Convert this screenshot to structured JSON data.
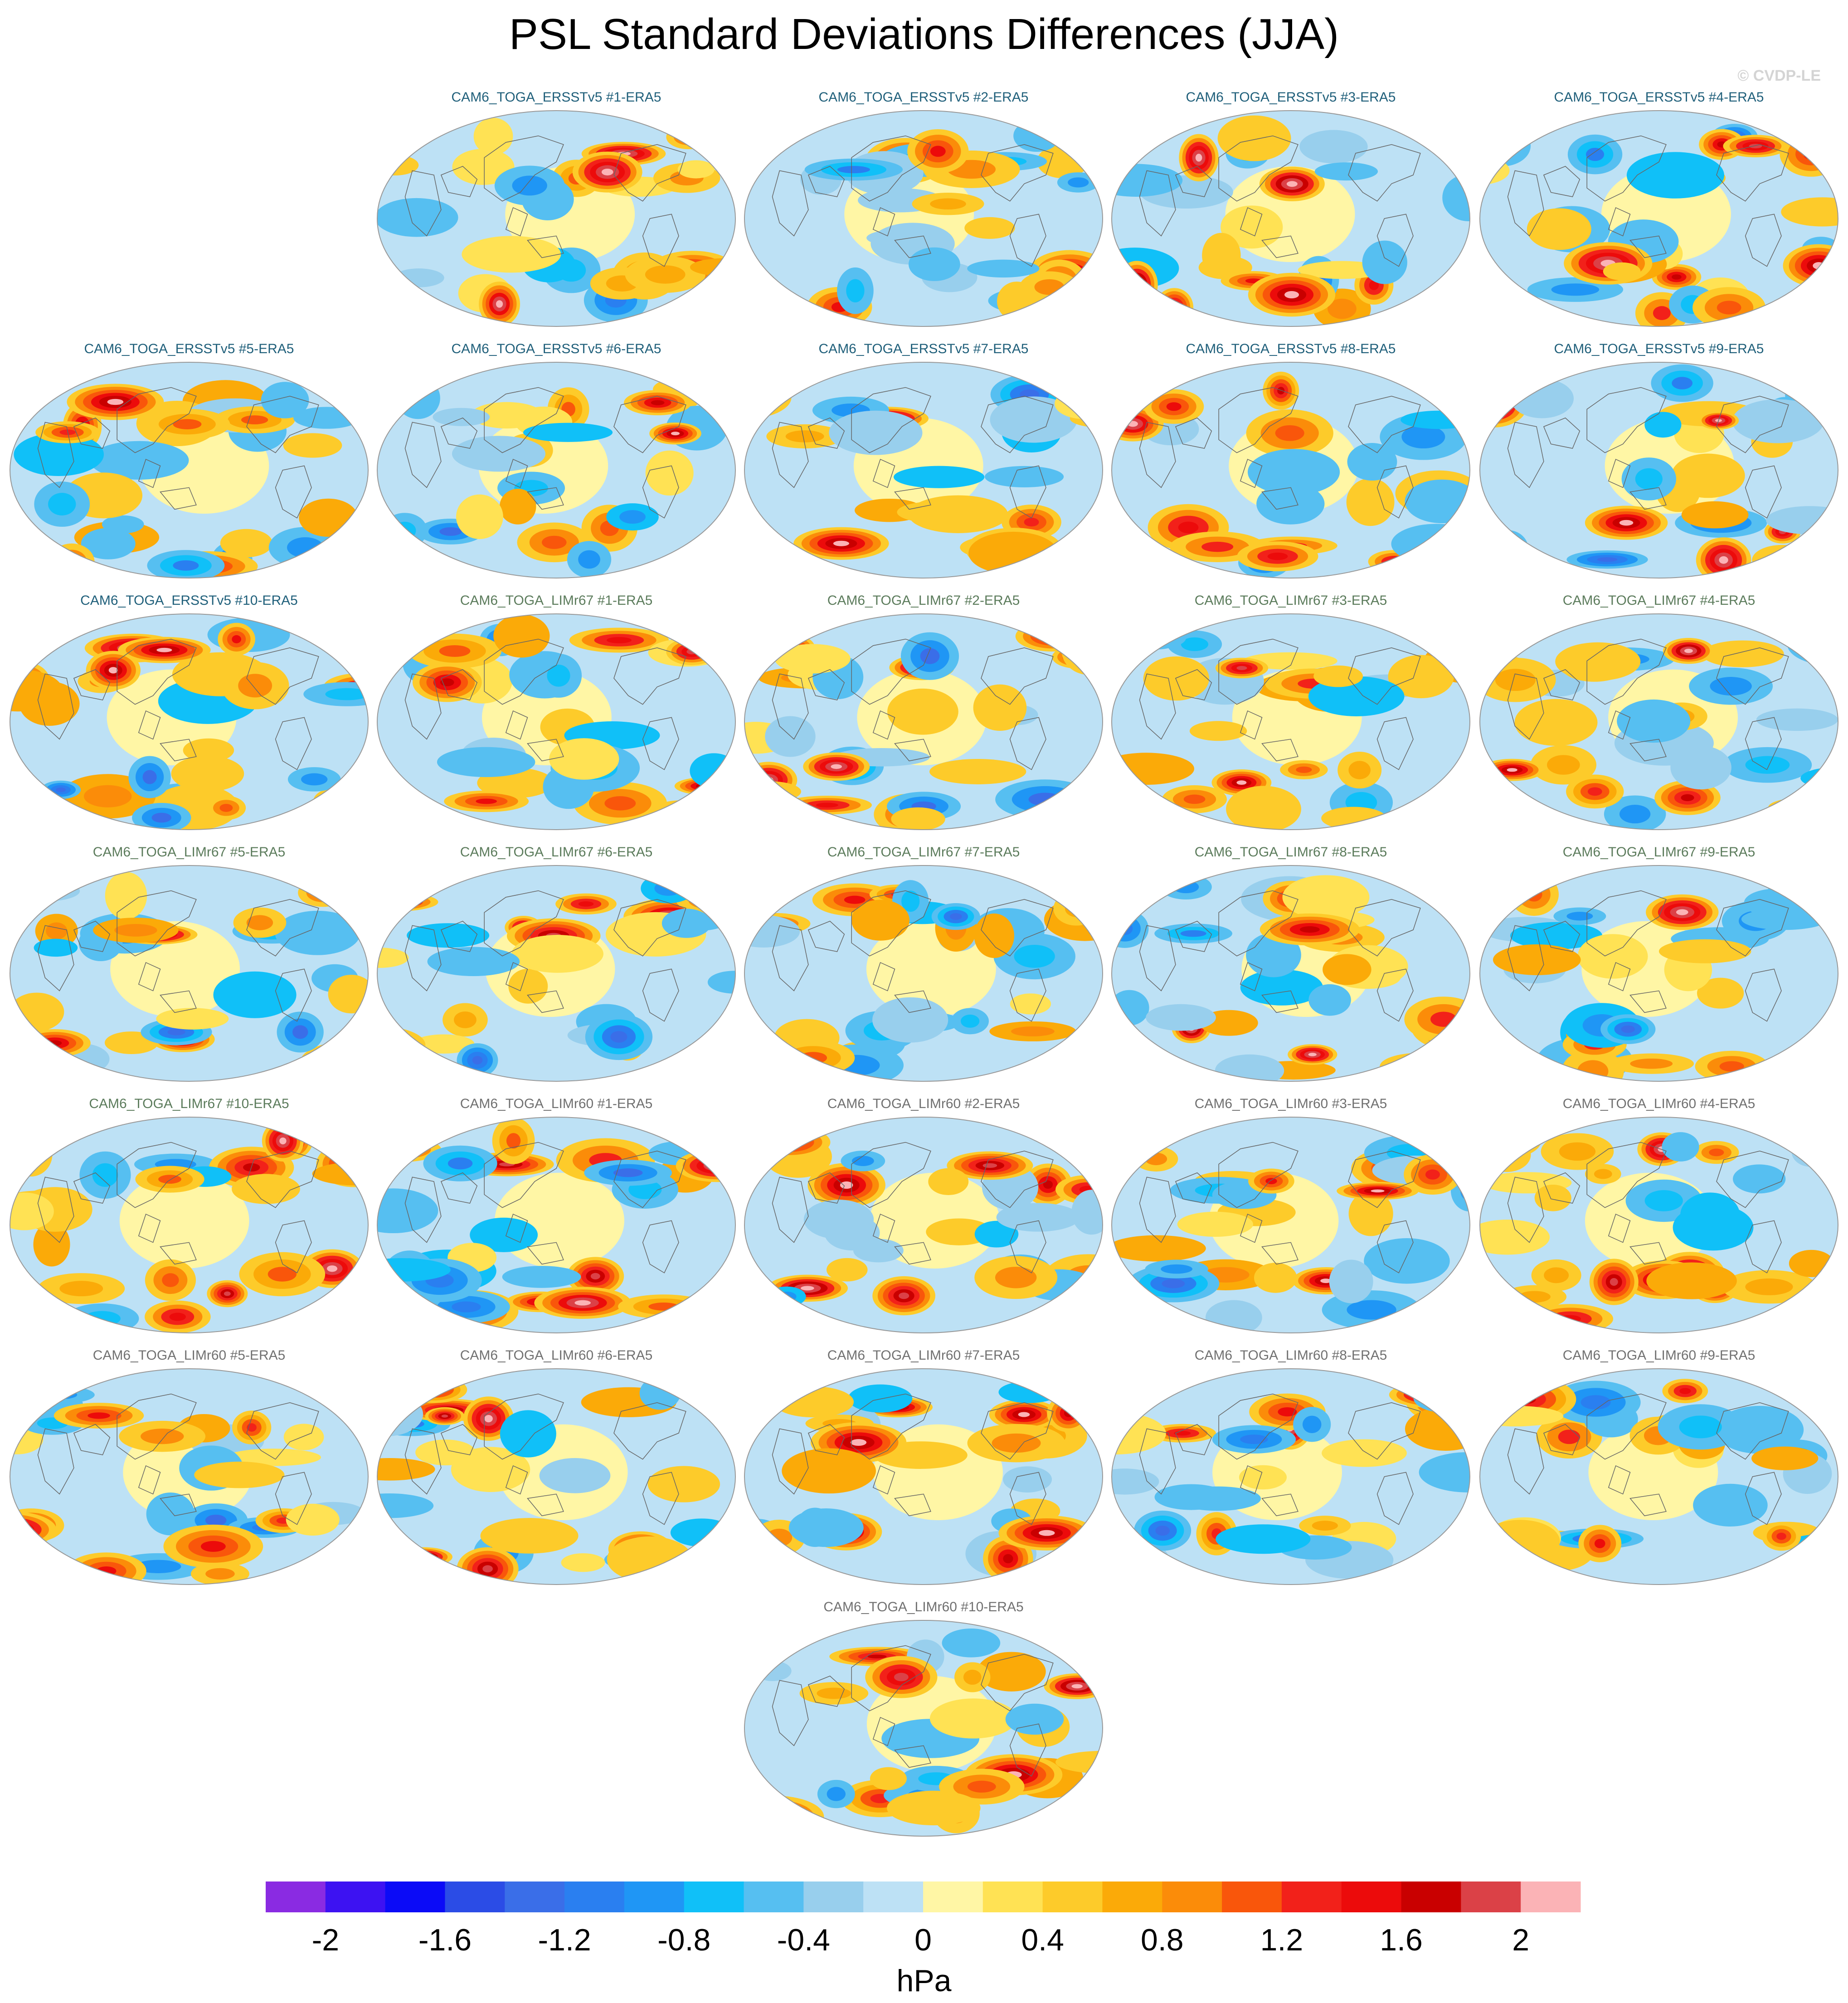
{
  "title": "PSL Standard Deviations Differences (JJA)",
  "watermark": "© CVDP-LE",
  "chart_data": {
    "type": "heatmap",
    "title": "PSL Standard Deviations Differences (JJA)",
    "projection": "global map",
    "panels": [
      {
        "label": "CAM6_TOGA_ERSSTv5 #1-ERA5",
        "group": "ersst"
      },
      {
        "label": "CAM6_TOGA_ERSSTv5 #2-ERA5",
        "group": "ersst"
      },
      {
        "label": "CAM6_TOGA_ERSSTv5 #3-ERA5",
        "group": "ersst"
      },
      {
        "label": "CAM6_TOGA_ERSSTv5 #4-ERA5",
        "group": "ersst"
      },
      {
        "label": "CAM6_TOGA_ERSSTv5 #5-ERA5",
        "group": "ersst"
      },
      {
        "label": "CAM6_TOGA_ERSSTv5 #6-ERA5",
        "group": "ersst"
      },
      {
        "label": "CAM6_TOGA_ERSSTv5 #7-ERA5",
        "group": "ersst"
      },
      {
        "label": "CAM6_TOGA_ERSSTv5 #8-ERA5",
        "group": "ersst"
      },
      {
        "label": "CAM6_TOGA_ERSSTv5 #9-ERA5",
        "group": "ersst"
      },
      {
        "label": "CAM6_TOGA_ERSSTv5 #10-ERA5",
        "group": "ersst"
      },
      {
        "label": "CAM6_TOGA_LIMr67 #1-ERA5",
        "group": "limr67"
      },
      {
        "label": "CAM6_TOGA_LIMr67 #2-ERA5",
        "group": "limr67"
      },
      {
        "label": "CAM6_TOGA_LIMr67 #3-ERA5",
        "group": "limr67"
      },
      {
        "label": "CAM6_TOGA_LIMr67 #4-ERA5",
        "group": "limr67"
      },
      {
        "label": "CAM6_TOGA_LIMr67 #5-ERA5",
        "group": "limr67"
      },
      {
        "label": "CAM6_TOGA_LIMr67 #6-ERA5",
        "group": "limr67"
      },
      {
        "label": "CAM6_TOGA_LIMr67 #7-ERA5",
        "group": "limr67"
      },
      {
        "label": "CAM6_TOGA_LIMr67 #8-ERA5",
        "group": "limr67"
      },
      {
        "label": "CAM6_TOGA_LIMr67 #9-ERA5",
        "group": "limr67"
      },
      {
        "label": "CAM6_TOGA_LIMr67 #10-ERA5",
        "group": "limr67"
      },
      {
        "label": "CAM6_TOGA_LIMr60 #1-ERA5",
        "group": "limr60"
      },
      {
        "label": "CAM6_TOGA_LIMr60 #2-ERA5",
        "group": "limr60"
      },
      {
        "label": "CAM6_TOGA_LIMr60 #3-ERA5",
        "group": "limr60"
      },
      {
        "label": "CAM6_TOGA_LIMr60 #4-ERA5",
        "group": "limr60"
      },
      {
        "label": "CAM6_TOGA_LIMr60 #5-ERA5",
        "group": "limr60"
      },
      {
        "label": "CAM6_TOGA_LIMr60 #6-ERA5",
        "group": "limr60"
      },
      {
        "label": "CAM6_TOGA_LIMr60 #7-ERA5",
        "group": "limr60"
      },
      {
        "label": "CAM6_TOGA_LIMr60 #8-ERA5",
        "group": "limr60"
      },
      {
        "label": "CAM6_TOGA_LIMr60 #9-ERA5",
        "group": "limr60"
      },
      {
        "label": "CAM6_TOGA_LIMr60 #10-ERA5",
        "group": "limr60"
      }
    ],
    "colorbar": {
      "units": "hPa",
      "range": [
        -2.2,
        2.2
      ],
      "levels": [
        -2.2,
        -2.0,
        -1.8,
        -1.6,
        -1.4,
        -1.2,
        -1.0,
        -0.8,
        -0.6,
        -0.4,
        -0.2,
        0.0,
        0.2,
        0.4,
        0.6,
        0.8,
        1.0,
        1.2,
        1.4,
        1.6,
        1.8,
        2.0,
        2.2
      ],
      "colors": [
        "#8a2be2",
        "#3d12f2",
        "#0b0bf7",
        "#2b4ce6",
        "#3a6ee8",
        "#2a7ff0",
        "#1f96f5",
        "#10c0f8",
        "#56bff1",
        "#98cfed",
        "#bde1f5",
        "#fff6a5",
        "#ffe254",
        "#fdcb2a",
        "#fbaa08",
        "#fb8c09",
        "#f9560b",
        "#f2211a",
        "#ec0b0b",
        "#c90000",
        "#db4147",
        "#fbb3b6"
      ],
      "tick_values": [
        -2,
        -1.6,
        -1.2,
        -0.8,
        -0.4,
        0,
        0.4,
        0.8,
        1.2,
        1.6,
        2
      ],
      "tick_labels": [
        "-2",
        "-1.6",
        "-1.2",
        "-0.8",
        "-0.4",
        "0",
        "0.4",
        "0.8",
        "1.2",
        "1.6",
        "2"
      ]
    }
  }
}
